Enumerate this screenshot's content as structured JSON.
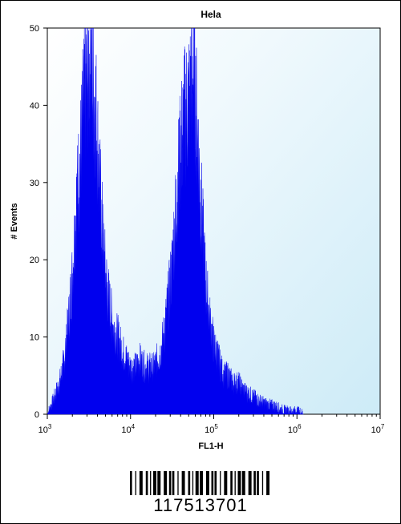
{
  "chart_data": {
    "type": "area",
    "title": "Hela",
    "xlabel": "FL1-H",
    "ylabel": "# Events",
    "x_scale": "log",
    "xlim": [
      1000,
      10000000
    ],
    "ylim": [
      0,
      50
    ],
    "x_ticks": [
      {
        "base": "10",
        "exp": "3"
      },
      {
        "base": "10",
        "exp": "4"
      },
      {
        "base": "10",
        "exp": "5"
      },
      {
        "base": "10",
        "exp": "6"
      },
      {
        "base": "10",
        "exp": "7"
      }
    ],
    "y_ticks": [
      "0",
      "10",
      "20",
      "30",
      "40",
      "50"
    ],
    "colors": {
      "fill": "#0000ee",
      "background": "#dff3fb"
    },
    "series": [
      {
        "x": [
          1000,
          1100,
          1200,
          1400,
          1600,
          1800,
          2000,
          2200,
          2500,
          2700,
          2900,
          3100,
          3300,
          3500,
          3800,
          4100,
          4500,
          5000,
          5600,
          6300,
          7000,
          8000,
          9000,
          10000,
          11500,
          13000,
          15000,
          17000,
          19000,
          21000,
          23000,
          25000,
          28000,
          31000,
          34000,
          37000,
          40000,
          43000,
          46000,
          50000,
          53000,
          56000,
          58000,
          60000,
          63000,
          66000,
          70000,
          75000,
          80000,
          90000,
          100000,
          115000,
          130000,
          150000,
          170000,
          200000,
          230000,
          270000,
          320000,
          380000,
          450000,
          550000,
          650000,
          800000,
          1000000,
          1100000,
          1200000
        ],
        "values": [
          0,
          1,
          2,
          4,
          7,
          12,
          18,
          26,
          33,
          39,
          42,
          45,
          47,
          43,
          40,
          33,
          25,
          18,
          14,
          11,
          10,
          8,
          7,
          6,
          6,
          7,
          6,
          6,
          6,
          7,
          8,
          10,
          14,
          18,
          24,
          30,
          34,
          37,
          39,
          40,
          42,
          44,
          43,
          41,
          37,
          33,
          28,
          22,
          17,
          12,
          9,
          7,
          5,
          5,
          4,
          4,
          3,
          2.5,
          2,
          1.5,
          1.2,
          1,
          0.6,
          0.4,
          0.4,
          0.3,
          0
        ]
      }
    ]
  },
  "barcode": {
    "number": "117513701"
  }
}
